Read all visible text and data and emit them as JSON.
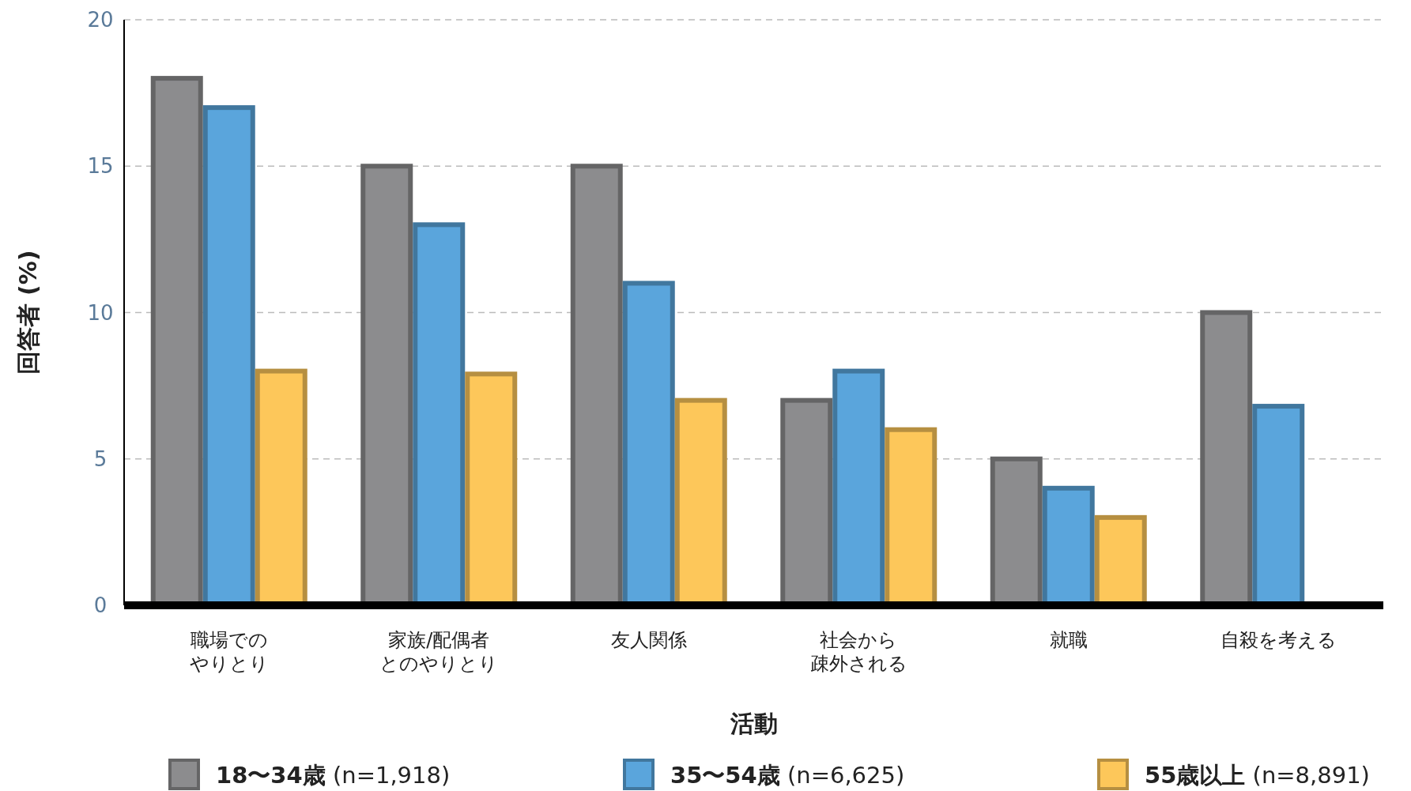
{
  "chart_data": {
    "type": "bar",
    "xlabel": "活動",
    "ylabel": "回答者 (%)",
    "categories": [
      "職場でのやりとり",
      "家族/配偶者とのやりとり",
      "友人関係",
      "社会から疎外される",
      "就職",
      "自殺を考える"
    ],
    "series": [
      {
        "name": "18〜34歳 (n=1,918)",
        "color": "#8c8c8e",
        "values": [
          18,
          15,
          15,
          7,
          5,
          10
        ]
      },
      {
        "name": "35〜54歳 (n=6,625)",
        "color": "#5aa5dc",
        "values": [
          17,
          13,
          11,
          8,
          4,
          6.8
        ]
      },
      {
        "name": "55歳以上 (n=8,891)",
        "color": "#fdc75a",
        "values": [
          8,
          7.9,
          7,
          6,
          3,
          null
        ]
      }
    ],
    "ylim": [
      0,
      20
    ],
    "yticks": [
      0,
      5,
      10,
      15,
      20
    ],
    "grid": "y",
    "legend": "bottom"
  }
}
